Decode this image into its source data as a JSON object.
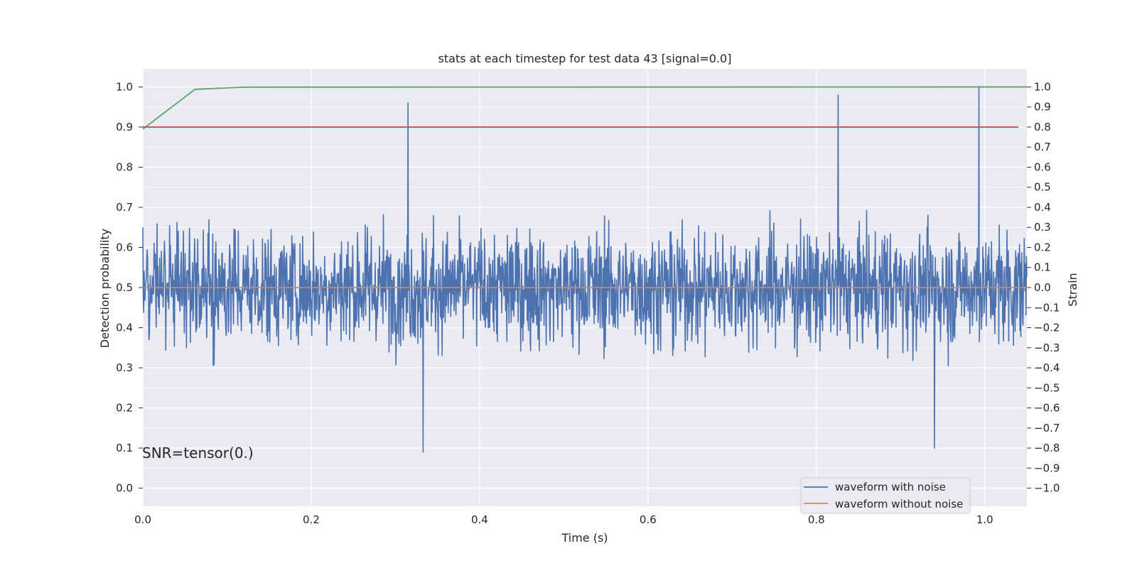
{
  "chart_data": {
    "type": "line",
    "title": "stats at each timestep for test data 43 [signal=0.0]",
    "xlabel": "Time (s)",
    "ylabel": "Detection probability",
    "y2label": "Strain",
    "xlim": [
      0.0,
      1.05
    ],
    "ylim": [
      -0.045,
      1.045
    ],
    "y2lim": [
      -1.0,
      1.0
    ],
    "y2_left_equivalent": [
      0.0,
      1.0
    ],
    "xticks": [
      "0.0",
      "0.2",
      "0.4",
      "0.6",
      "0.8",
      "1.0"
    ],
    "yticks": [
      "0.0",
      "0.1",
      "0.2",
      "0.3",
      "0.4",
      "0.5",
      "0.6",
      "0.7",
      "0.8",
      "0.9",
      "1.0"
    ],
    "y2ticks": [
      "1.0",
      "0.9",
      "0.8",
      "0.7",
      "0.6",
      "0.5",
      "0.4",
      "0.3",
      "0.2",
      "0.1",
      "0.0",
      "−0.1",
      "−0.2",
      "−0.3",
      "−0.4",
      "−0.5",
      "−0.6",
      "−0.7",
      "−0.8",
      "−0.9",
      "−1.0"
    ],
    "grid": true,
    "legend_position": "lower-right",
    "annotation": "SNR=tensor(0.)",
    "series": [
      {
        "name": "waveform with noise",
        "axis": "right",
        "color": "#4c72b0",
        "sample_count": 2048,
        "x_range": [
          0.0,
          1.05
        ],
        "approx_range": [
          -0.82,
          1.0
        ],
        "description_points": [
          {
            "x": 0.0,
            "y": 0.3
          },
          {
            "x": 0.315,
            "y": 0.92
          },
          {
            "x": 0.333,
            "y": -0.82
          },
          {
            "x": 0.826,
            "y": 0.96
          },
          {
            "x": 0.94,
            "y": -0.8
          },
          {
            "x": 0.993,
            "y": 1.0
          }
        ]
      },
      {
        "name": "waveform without noise",
        "axis": "right",
        "color": "#dd8452",
        "x": [
          0.0,
          1.05
        ],
        "y": [
          0.0,
          0.0
        ]
      },
      {
        "axis": "left",
        "color": "#55a868",
        "x": [
          0.0,
          0.062,
          0.12,
          1.05
        ],
        "y": [
          0.895,
          0.994,
          0.9995,
          1.0
        ]
      },
      {
        "axis": "left",
        "color": "#c44e52",
        "x": [
          0.0,
          1.04
        ],
        "y": [
          0.9,
          0.9
        ]
      }
    ]
  },
  "colors": {
    "plot_background": "#eaeaf2",
    "grid": "#ffffff",
    "text": "#262626"
  }
}
